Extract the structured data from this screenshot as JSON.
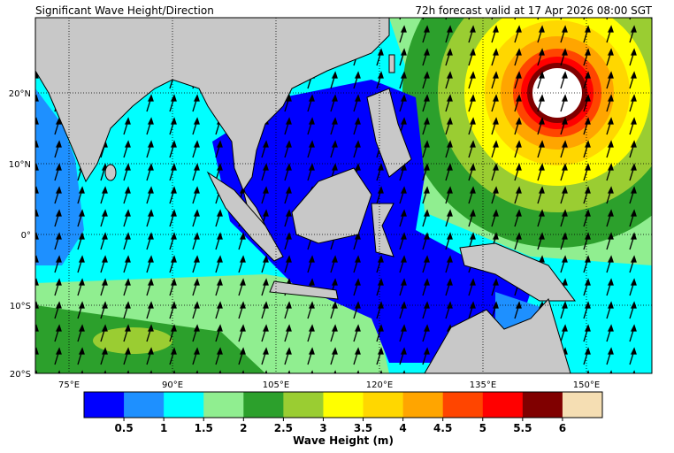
{
  "header": {
    "title": "Significant Wave Height/Direction",
    "valid": "72h forecast valid at 17 Apr 2026 08:00 SGT"
  },
  "map": {
    "lon_labels": [
      "75°E",
      "90°E",
      "105°E",
      "120°E",
      "135°E",
      "150°E"
    ],
    "lat_labels": [
      "20°N",
      "10°N",
      "0°",
      "10°S",
      "20°S"
    ]
  },
  "colorbar": {
    "label": "Wave Height (m)",
    "colors": [
      "#0000ff",
      "#1e90ff",
      "#00ffff",
      "#90ee90",
      "#2ca02c",
      "#9acd32",
      "#ffff00",
      "#ffd700",
      "#ffa500",
      "#ff4500",
      "#ff0000",
      "#800000",
      "#f5deb3"
    ],
    "ticks": [
      0.5,
      1,
      1.5,
      2,
      2.5,
      3,
      3.5,
      4,
      4.5,
      5,
      5.5,
      6
    ]
  }
}
